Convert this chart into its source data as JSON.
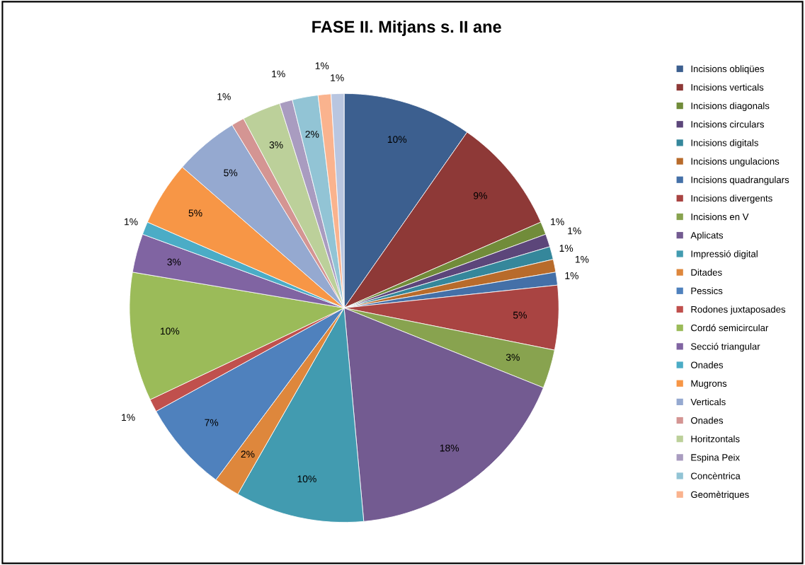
{
  "chart_data": {
    "type": "pie",
    "title": "FASE II. Mitjans s. II ane",
    "categories": [
      "Incisions obliqües",
      "Incisions verticals",
      "Incisions diagonals",
      "Incisions circulars",
      "Incisions digitals",
      "Incisions ungulacions",
      "Incisions quadrangulars",
      "Incisions divergents",
      "Incisions en V",
      "Aplicats",
      "Impressió digital",
      "Ditades",
      "Pessics",
      "Rodones juxtaposades",
      "Cordó semicircular",
      "Secció triangular",
      "Onades",
      "Mugrons",
      "Verticals",
      "Onades",
      "Horitzontals",
      "Espina Peix",
      "Concèntrica",
      "Geomètriques",
      null
    ],
    "values": [
      10,
      9,
      1,
      1,
      1,
      1,
      1,
      5,
      3,
      18,
      10,
      2,
      7,
      1,
      10,
      3,
      1,
      5,
      5,
      1,
      3,
      1,
      2,
      1,
      1
    ],
    "colors": [
      "#3c5f8f",
      "#8e3937",
      "#718c3a",
      "#5c467a",
      "#35879b",
      "#b86b2b",
      "#4470a8",
      "#a94442",
      "#88a34f",
      "#735b91",
      "#429bb0",
      "#de873c",
      "#4f81bd",
      "#c0504d",
      "#9bbb59",
      "#8064a2",
      "#4bacc6",
      "#f79646",
      "#95a9d0",
      "#d49593",
      "#bcd09a",
      "#a99cc0",
      "#92c4d5",
      "#fab38e",
      "#b9c6e0"
    ],
    "value_labels": [
      "10%",
      "9%",
      "1%",
      "1%",
      "1%",
      "1%",
      "1%",
      "5%",
      "3%",
      "18%",
      "10%",
      "2%",
      "7%",
      "1%",
      "10%",
      "3%",
      "1%",
      "5%",
      "5%",
      "1%",
      "3%",
      "1%",
      "2%",
      "1%",
      "1%"
    ],
    "legend": "right"
  }
}
